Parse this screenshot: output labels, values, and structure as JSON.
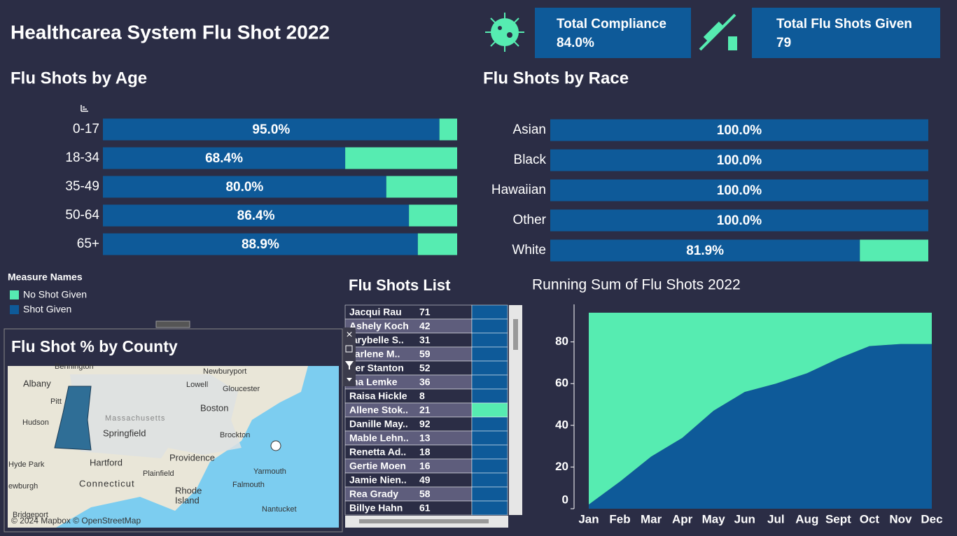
{
  "header": {
    "title": "Healthcarea System Flu Shot 2022"
  },
  "kpis": [
    {
      "label": "Total Compliance",
      "value": "84.0%"
    },
    {
      "label": "Total Flu Shots Given",
      "value": 79
    }
  ],
  "chart_data": [
    {
      "type": "hbar-stacked",
      "title": "Flu Shots by Age",
      "legend_title": "Measure Names",
      "categories": [
        "0-17",
        "18-34",
        "35-49",
        "50-64",
        "65+"
      ],
      "xlim": [
        0,
        100
      ],
      "series": [
        {
          "name": "No Shot Given",
          "color": "#56ecb1",
          "values": [
            5.0,
            31.6,
            20.0,
            13.6,
            11.1
          ]
        },
        {
          "name": "Shot Given",
          "color": "#0e5a99",
          "values": [
            95.0,
            68.4,
            80.0,
            86.4,
            88.9
          ],
          "value_labels": [
            "95.0%",
            "68.4%",
            "80.0%",
            "86.4%",
            "88.9%"
          ]
        }
      ]
    },
    {
      "type": "hbar-stacked",
      "title": "Flu Shots by Race",
      "categories": [
        "Asian",
        "Black",
        "Hawaiian",
        "Other",
        "White"
      ],
      "xlim": [
        0,
        100
      ],
      "series": [
        {
          "color": "#56ecb1",
          "values": [
            0,
            0,
            0,
            0,
            18.1
          ]
        },
        {
          "color": "#0e5a99",
          "values": [
            100.0,
            100.0,
            100.0,
            100.0,
            81.9
          ],
          "value_labels": [
            "100.0%",
            "100.0%",
            "100.0%",
            "100.0%",
            "81.9%"
          ]
        }
      ]
    },
    {
      "type": "area-stacked",
      "title": "Running Sum of Flu Shots 2022",
      "x": [
        "Jan",
        "Feb",
        "Mar",
        "Apr",
        "May",
        "Jun",
        "Jul",
        "Aug",
        "Sept",
        "Oct",
        "Nov",
        "Dec"
      ],
      "ylim": [
        0,
        98
      ],
      "yticks": [
        0,
        20,
        40,
        60,
        80
      ],
      "series": [
        {
          "color": "#56ecb1",
          "values": [
            92,
            81,
            69,
            60,
            47,
            38,
            34,
            29,
            22,
            16,
            15,
            15
          ]
        },
        {
          "color": "#0e5a99",
          "values": [
            2,
            13,
            25,
            34,
            47,
            56,
            60,
            65,
            72,
            78,
            79,
            79
          ]
        }
      ]
    }
  ],
  "list": {
    "title": "Flu Shots List",
    "rows": [
      [
        "Jacqui Rau",
        71,
        "#0e5a99"
      ],
      [
        "Ashely Koch",
        42,
        "#0e5a99"
      ],
      [
        "larybelle S..",
        31,
        "#0e5a99"
      ],
      [
        "earlene M..",
        59,
        "#0e5a99"
      ],
      [
        "her Stanton",
        52,
        "#0e5a99"
      ],
      [
        "ina Lemke",
        36,
        "#0e5a99"
      ],
      [
        "Raisa Hickle",
        8,
        "#0e5a99"
      ],
      [
        "Allene Stok..",
        21,
        "#56ecb1"
      ],
      [
        "Danille May..",
        92,
        "#0e5a99"
      ],
      [
        "Mable Lehn..",
        13,
        "#0e5a99"
      ],
      [
        "Renetta Ad..",
        18,
        "#0e5a99"
      ],
      [
        "Gertie Moen",
        16,
        "#0e5a99"
      ],
      [
        "Jamie Nien..",
        49,
        "#0e5a99"
      ],
      [
        "Rea Grady",
        58,
        "#0e5a99"
      ],
      [
        "Billye Hahn",
        61,
        "#0e5a99"
      ]
    ]
  },
  "map": {
    "title": "Flu Shot % by County",
    "attribution": "© 2024 Mapbox © OpenStreetMap",
    "labels": [
      "Bennington",
      "Newburyport",
      "Albany",
      "Lowell",
      "Gloucester",
      "Pitt",
      "Boston",
      "Hudson",
      "Massachusetts",
      "Springfield",
      "Brockton",
      "Providence",
      "Hyde Park",
      "Hartford",
      "Plainfield",
      "Yarmouth",
      "Connecticut",
      "Rhode",
      "Island",
      "Falmouth",
      "ewburgh",
      "Bridgeport",
      "Nantucket"
    ]
  }
}
